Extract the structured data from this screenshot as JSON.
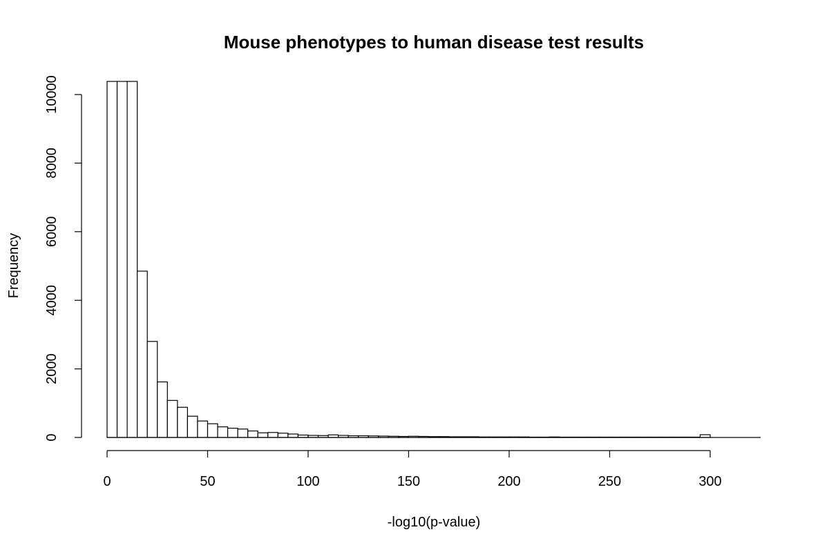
{
  "chart_data": {
    "type": "bar",
    "histogram": true,
    "title": "Mouse phenotypes to human disease test results",
    "xlabel": "-log10(p-value)",
    "ylabel": "Frequency",
    "xlim": [
      0,
      325
    ],
    "ylim": [
      0,
      10400
    ],
    "x_ticks": [
      0,
      50,
      100,
      150,
      200,
      250,
      300
    ],
    "y_ticks": [
      0,
      2000,
      4000,
      6000,
      8000,
      10000
    ],
    "bin_width": 5,
    "bin_start": 0,
    "values": [
      10400,
      10400,
      10400,
      4850,
      2800,
      1620,
      1080,
      880,
      620,
      480,
      400,
      310,
      270,
      245,
      190,
      135,
      145,
      125,
      100,
      70,
      60,
      55,
      75,
      60,
      50,
      50,
      45,
      40,
      35,
      30,
      35,
      30,
      25,
      25,
      20,
      20,
      20,
      15,
      15,
      15,
      15,
      15,
      10,
      10,
      15,
      10,
      10,
      10,
      10,
      10,
      10,
      10,
      10,
      10,
      10,
      10,
      10,
      10,
      10,
      80
    ],
    "grid": false,
    "legend": "none"
  }
}
